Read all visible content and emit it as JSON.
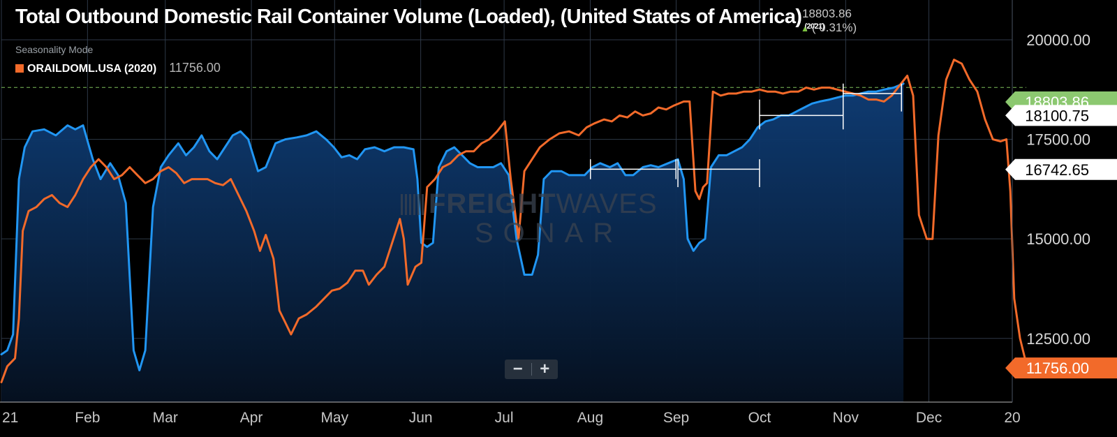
{
  "header": {
    "title": "Total Outbound Domestic Rail Container Volume (Loaded), (United States of America)",
    "title_year": "(2021)",
    "current_value": "18803.86",
    "change": "( 0.31%)"
  },
  "legend": {
    "mode": "Seasonality Mode",
    "series_label": "ORAILDOML.USA (2020)",
    "series_value": "11756.00"
  },
  "watermark": {
    "line1_bold": "FREIGHT",
    "line1_thin": "WAVES",
    "line2": "SONAR"
  },
  "zoom": {
    "minus": "−",
    "plus": "+"
  },
  "colors": {
    "series_2021": "#2196f3",
    "series_2020": "#f26a2a",
    "current_badge": "#8cc870"
  },
  "chart_data": {
    "type": "line",
    "x_unit": "week of year",
    "x_tick_labels": [
      "21",
      "Feb",
      "Mar",
      "Apr",
      "May",
      "Jun",
      "Jul",
      "Aug",
      "Sep",
      "Oct",
      "Nov",
      "Dec",
      "20"
    ],
    "x_tick_weeks": [
      0,
      4.43,
      8.43,
      12.86,
      17.14,
      21.57,
      25.86,
      30.29,
      34.71,
      39,
      43.43,
      47.71,
      52
    ],
    "y_ticks": [
      12500,
      15000,
      17500,
      20000
    ],
    "y_tick_labels": [
      "12500.00",
      "15000.00",
      "17500.00",
      "20000.00"
    ],
    "ylim": [
      10900,
      21000
    ],
    "xlim": [
      0,
      52
    ],
    "grid": true,
    "reference_line": 18803.86,
    "series": [
      {
        "name": "2021",
        "filled": true,
        "points": [
          [
            0,
            12100
          ],
          [
            0.3,
            12200
          ],
          [
            0.6,
            12600
          ],
          [
            0.9,
            16500
          ],
          [
            1.2,
            17300
          ],
          [
            1.6,
            17700
          ],
          [
            2.2,
            17750
          ],
          [
            2.8,
            17600
          ],
          [
            3.4,
            17850
          ],
          [
            3.8,
            17750
          ],
          [
            4.2,
            17850
          ],
          [
            4.7,
            17000
          ],
          [
            5.1,
            16500
          ],
          [
            5.6,
            16900
          ],
          [
            6.0,
            16600
          ],
          [
            6.4,
            15900
          ],
          [
            6.8,
            12200
          ],
          [
            7.1,
            11700
          ],
          [
            7.4,
            12200
          ],
          [
            7.8,
            15800
          ],
          [
            8.2,
            16800
          ],
          [
            8.6,
            17100
          ],
          [
            9.1,
            17400
          ],
          [
            9.5,
            17100
          ],
          [
            9.9,
            17300
          ],
          [
            10.3,
            17600
          ],
          [
            10.7,
            17200
          ],
          [
            11.1,
            17000
          ],
          [
            11.5,
            17300
          ],
          [
            11.9,
            17600
          ],
          [
            12.3,
            17700
          ],
          [
            12.7,
            17500
          ],
          [
            13.2,
            16700
          ],
          [
            13.6,
            16800
          ],
          [
            14.1,
            17400
          ],
          [
            14.6,
            17500
          ],
          [
            15.2,
            17550
          ],
          [
            15.7,
            17600
          ],
          [
            16.2,
            17700
          ],
          [
            16.7,
            17500
          ],
          [
            17.1,
            17300
          ],
          [
            17.5,
            17050
          ],
          [
            17.9,
            17100
          ],
          [
            18.3,
            17000
          ],
          [
            18.7,
            17250
          ],
          [
            19.2,
            17300
          ],
          [
            19.7,
            17200
          ],
          [
            20.2,
            17300
          ],
          [
            20.7,
            17300
          ],
          [
            21.2,
            17250
          ],
          [
            21.4,
            16500
          ],
          [
            21.6,
            14900
          ],
          [
            21.9,
            14800
          ],
          [
            22.2,
            14900
          ],
          [
            22.5,
            16800
          ],
          [
            22.9,
            17200
          ],
          [
            23.3,
            17300
          ],
          [
            23.7,
            17100
          ],
          [
            24.1,
            16900
          ],
          [
            24.5,
            16800
          ],
          [
            24.9,
            16800
          ],
          [
            25.3,
            16800
          ],
          [
            25.7,
            16900
          ],
          [
            26.1,
            16600
          ],
          [
            26.5,
            15000
          ],
          [
            26.9,
            14100
          ],
          [
            27.3,
            14100
          ],
          [
            27.6,
            14600
          ],
          [
            27.9,
            16500
          ],
          [
            28.3,
            16700
          ],
          [
            28.8,
            16700
          ],
          [
            29.2,
            16600
          ],
          [
            29.6,
            16600
          ],
          [
            30.0,
            16600
          ],
          [
            30.4,
            16800
          ],
          [
            30.8,
            16900
          ],
          [
            31.3,
            16800
          ],
          [
            31.7,
            16900
          ],
          [
            32.1,
            16600
          ],
          [
            32.5,
            16600
          ],
          [
            33.0,
            16800
          ],
          [
            33.4,
            16850
          ],
          [
            33.8,
            16800
          ],
          [
            34.3,
            16900
          ],
          [
            34.8,
            17000
          ],
          [
            35.1,
            16500
          ],
          [
            35.3,
            15000
          ],
          [
            35.6,
            14700
          ],
          [
            35.9,
            14900
          ],
          [
            36.2,
            15000
          ],
          [
            36.5,
            16800
          ],
          [
            36.9,
            17100
          ],
          [
            37.3,
            17100
          ],
          [
            37.7,
            17200
          ],
          [
            38.1,
            17300
          ],
          [
            38.5,
            17500
          ],
          [
            38.9,
            17800
          ],
          [
            39.3,
            17950
          ],
          [
            39.7,
            18000
          ],
          [
            40.1,
            18100
          ],
          [
            40.5,
            18100
          ],
          [
            40.9,
            18200
          ],
          [
            41.3,
            18300
          ],
          [
            41.7,
            18400
          ],
          [
            42.1,
            18450
          ],
          [
            42.6,
            18500
          ],
          [
            43.0,
            18550
          ],
          [
            43.4,
            18600
          ],
          [
            43.8,
            18600
          ],
          [
            44.2,
            18650
          ],
          [
            44.6,
            18700
          ],
          [
            45.0,
            18700
          ],
          [
            45.4,
            18750
          ],
          [
            45.9,
            18800
          ],
          [
            46.4,
            18900
          ]
        ]
      },
      {
        "name": "2020",
        "filled": false,
        "points": [
          [
            0,
            11400
          ],
          [
            0.3,
            11800
          ],
          [
            0.7,
            12000
          ],
          [
            0.9,
            13000
          ],
          [
            1.1,
            15200
          ],
          [
            1.4,
            15700
          ],
          [
            1.8,
            15800
          ],
          [
            2.2,
            16000
          ],
          [
            2.6,
            16100
          ],
          [
            3.0,
            15900
          ],
          [
            3.4,
            15800
          ],
          [
            3.8,
            16100
          ],
          [
            4.2,
            16500
          ],
          [
            4.6,
            16800
          ],
          [
            5.0,
            17000
          ],
          [
            5.4,
            16800
          ],
          [
            5.8,
            16500
          ],
          [
            6.2,
            16600
          ],
          [
            6.6,
            16800
          ],
          [
            7.0,
            16600
          ],
          [
            7.4,
            16400
          ],
          [
            7.8,
            16500
          ],
          [
            8.2,
            16700
          ],
          [
            8.6,
            16800
          ],
          [
            9.0,
            16650
          ],
          [
            9.4,
            16400
          ],
          [
            9.8,
            16500
          ],
          [
            10.2,
            16500
          ],
          [
            10.6,
            16500
          ],
          [
            11.0,
            16400
          ],
          [
            11.4,
            16350
          ],
          [
            11.8,
            16500
          ],
          [
            12.2,
            16100
          ],
          [
            12.6,
            15700
          ],
          [
            13.0,
            15200
          ],
          [
            13.3,
            14700
          ],
          [
            13.6,
            15100
          ],
          [
            14.0,
            14500
          ],
          [
            14.3,
            13200
          ],
          [
            14.6,
            12900
          ],
          [
            14.9,
            12600
          ],
          [
            15.3,
            13000
          ],
          [
            15.7,
            13100
          ],
          [
            16.2,
            13300
          ],
          [
            16.6,
            13500
          ],
          [
            17.0,
            13700
          ],
          [
            17.4,
            13750
          ],
          [
            17.8,
            13900
          ],
          [
            18.2,
            14200
          ],
          [
            18.6,
            14200
          ],
          [
            18.9,
            13850
          ],
          [
            19.3,
            14100
          ],
          [
            19.7,
            14300
          ],
          [
            20.1,
            14900
          ],
          [
            20.5,
            15500
          ],
          [
            20.7,
            15000
          ],
          [
            20.9,
            13850
          ],
          [
            21.3,
            14300
          ],
          [
            21.6,
            14400
          ],
          [
            21.9,
            16300
          ],
          [
            22.3,
            16500
          ],
          [
            22.7,
            16800
          ],
          [
            23.1,
            16900
          ],
          [
            23.5,
            17100
          ],
          [
            23.9,
            17200
          ],
          [
            24.3,
            17200
          ],
          [
            24.7,
            17400
          ],
          [
            25.1,
            17500
          ],
          [
            25.5,
            17700
          ],
          [
            25.9,
            17950
          ],
          [
            26.2,
            16500
          ],
          [
            26.6,
            15000
          ],
          [
            26.9,
            16700
          ],
          [
            27.3,
            17000
          ],
          [
            27.7,
            17300
          ],
          [
            28.2,
            17500
          ],
          [
            28.7,
            17650
          ],
          [
            29.2,
            17700
          ],
          [
            29.7,
            17600
          ],
          [
            30.1,
            17800
          ],
          [
            30.5,
            17900
          ],
          [
            31.0,
            18000
          ],
          [
            31.4,
            17950
          ],
          [
            31.8,
            18100
          ],
          [
            32.2,
            18050
          ],
          [
            32.6,
            18200
          ],
          [
            33.0,
            18100
          ],
          [
            33.4,
            18150
          ],
          [
            33.8,
            18300
          ],
          [
            34.2,
            18250
          ],
          [
            34.6,
            18350
          ],
          [
            35.1,
            18450
          ],
          [
            35.4,
            18450
          ],
          [
            35.7,
            16200
          ],
          [
            35.9,
            16000
          ],
          [
            36.1,
            16300
          ],
          [
            36.3,
            16400
          ],
          [
            36.6,
            18700
          ],
          [
            37.0,
            18600
          ],
          [
            37.4,
            18650
          ],
          [
            37.8,
            18650
          ],
          [
            38.2,
            18700
          ],
          [
            38.6,
            18700
          ],
          [
            39.0,
            18750
          ],
          [
            39.4,
            18700
          ],
          [
            39.8,
            18700
          ],
          [
            40.2,
            18650
          ],
          [
            40.6,
            18700
          ],
          [
            41.0,
            18700
          ],
          [
            41.4,
            18800
          ],
          [
            41.8,
            18750
          ],
          [
            42.2,
            18800
          ],
          [
            42.6,
            18800
          ],
          [
            43.0,
            18750
          ],
          [
            43.4,
            18700
          ],
          [
            43.8,
            18650
          ],
          [
            44.2,
            18600
          ],
          [
            44.6,
            18500
          ],
          [
            45.0,
            18500
          ],
          [
            45.4,
            18450
          ],
          [
            45.8,
            18600
          ],
          [
            46.2,
            18850
          ],
          [
            46.6,
            19100
          ],
          [
            46.9,
            18600
          ],
          [
            47.2,
            15600
          ],
          [
            47.6,
            15000
          ],
          [
            47.9,
            15000
          ],
          [
            48.2,
            17600
          ],
          [
            48.6,
            19000
          ],
          [
            49.0,
            19500
          ],
          [
            49.4,
            19400
          ],
          [
            49.8,
            19000
          ],
          [
            50.2,
            18700
          ],
          [
            50.6,
            18000
          ],
          [
            51.0,
            17500
          ],
          [
            51.4,
            17450
          ],
          [
            51.7,
            17500
          ],
          [
            51.9,
            16200
          ],
          [
            52.1,
            13500
          ],
          [
            52.4,
            12500
          ],
          [
            52.7,
            11900
          ],
          [
            52.9,
            11756
          ]
        ]
      }
    ],
    "measure_brackets": [
      {
        "x_start": 30.3,
        "x_end": 34.7,
        "y": 16750,
        "top": 17000,
        "bottom": 16500
      },
      {
        "x_start": 34.8,
        "x_end": 39.0,
        "y": 16750,
        "top": 17000,
        "bottom": 16300
      },
      {
        "x_start": 39.0,
        "x_end": 43.3,
        "y": 18100,
        "top": 18500,
        "bottom": 17750
      },
      {
        "x_start": 43.3,
        "x_end": 46.3,
        "y": 18650,
        "top": 18900,
        "bottom": 18200
      }
    ],
    "price_badges": [
      {
        "value": 18803.86,
        "label": "18803.86",
        "bg": "#8cc870",
        "fg": "#ffffff"
      },
      {
        "value": 18100.75,
        "label": "18100.75",
        "bg": "#ffffff",
        "fg": "#000000"
      },
      {
        "value": 16742.65,
        "label": "16742.65",
        "bg": "#ffffff",
        "fg": "#000000"
      },
      {
        "value": 11756.0,
        "label": "11756.00",
        "bg": "#f26a2a",
        "fg": "#ffffff"
      }
    ]
  }
}
